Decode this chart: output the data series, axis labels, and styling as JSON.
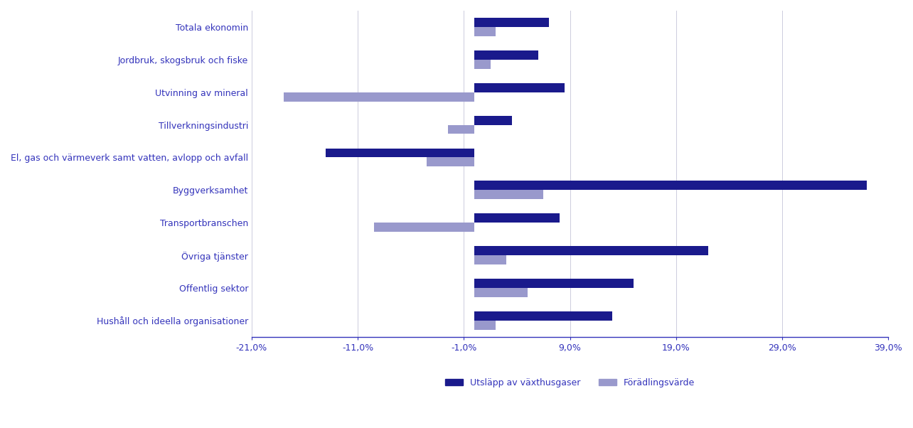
{
  "categories": [
    "Totala ekonomin",
    "Jordbruk, skogsbruk och fiske",
    "Utvinning av mineral",
    "Tillverkningsindustri",
    "El, gas och värmeverk samt vatten, avlopp och avfall",
    "Byggverksamhet",
    "Transportbranschen",
    "Övriga tjänster",
    "Offentlig sektor",
    "Hushåll och ideella organisationer"
  ],
  "utslapp": [
    7.0,
    6.0,
    8.5,
    3.5,
    -14.0,
    37.0,
    8.0,
    22.0,
    15.0,
    13.0
  ],
  "foradlingsvarde": [
    2.0,
    1.5,
    -18.0,
    -2.5,
    -4.5,
    6.5,
    -9.5,
    3.0,
    5.0,
    2.0
  ],
  "utslapp_color": "#1a1a8c",
  "foradlingsvarde_color": "#9999cc",
  "axis_color": "#3333bb",
  "label_color": "#3333bb",
  "grid_color": "#ccccdd",
  "background_color": "#ffffff",
  "xlim": [
    -21,
    39
  ],
  "xticks": [
    -21,
    -11,
    -1,
    9,
    19,
    29,
    39
  ],
  "xtick_labels": [
    "-21,0%",
    "-11,0%",
    "-1,0%",
    "9,0%",
    "19,0%",
    "29,0%",
    "39,0%"
  ],
  "legend_utslapp": "Utsläpp av växthusgaser",
  "legend_foradling": "Förädlingsvärde",
  "bar_height": 0.28
}
